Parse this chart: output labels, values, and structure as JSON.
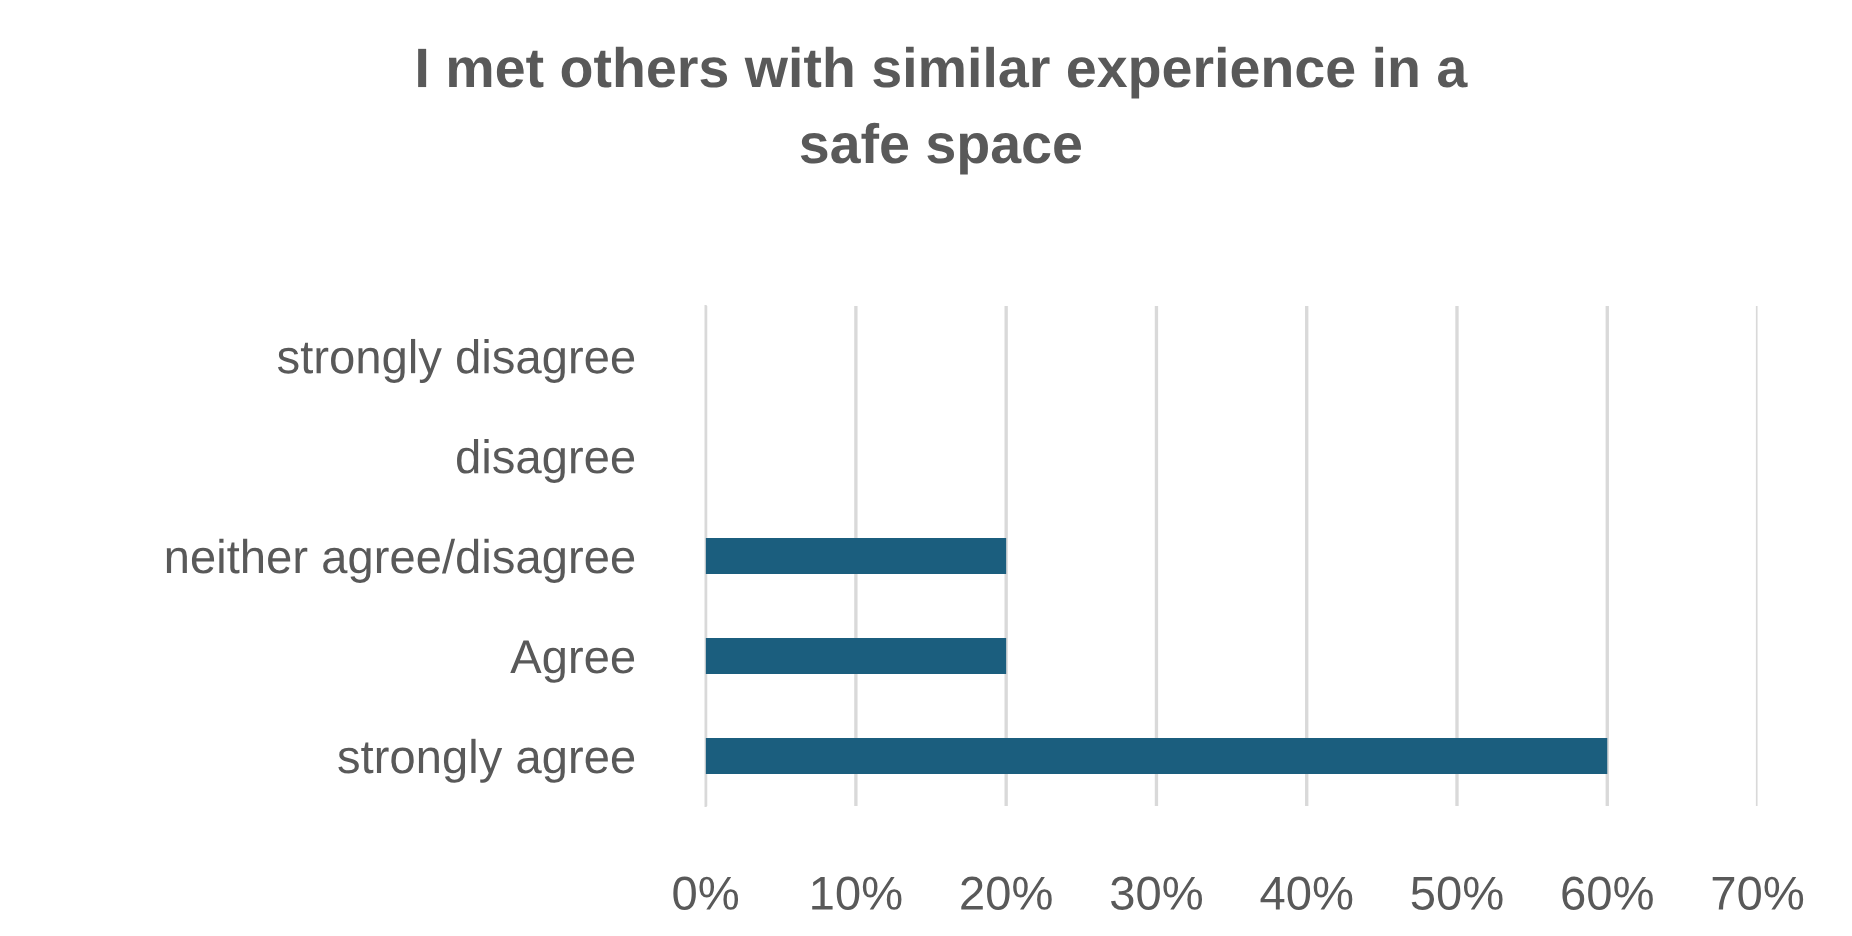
{
  "chart_data": {
    "type": "bar",
    "orientation": "horizontal",
    "title": "I met others with similar experience in a\nsafe space",
    "categories": [
      "strongly disagree",
      "disagree",
      "neither agree/disagree",
      "Agree",
      "strongly agree"
    ],
    "values": [
      0,
      0,
      20,
      20,
      60
    ],
    "color": "#1b5e7e",
    "xlim": [
      0,
      70
    ],
    "xticks": [
      {
        "value": 0,
        "label": "0%"
      },
      {
        "value": 10,
        "label": "10%"
      },
      {
        "value": 20,
        "label": "20%"
      },
      {
        "value": 30,
        "label": "30%"
      },
      {
        "value": 40,
        "label": "40%"
      },
      {
        "value": 50,
        "label": "50%"
      },
      {
        "value": 60,
        "label": "60%"
      },
      {
        "value": 70,
        "label": "70%"
      }
    ],
    "grid": "x",
    "legend": false
  }
}
